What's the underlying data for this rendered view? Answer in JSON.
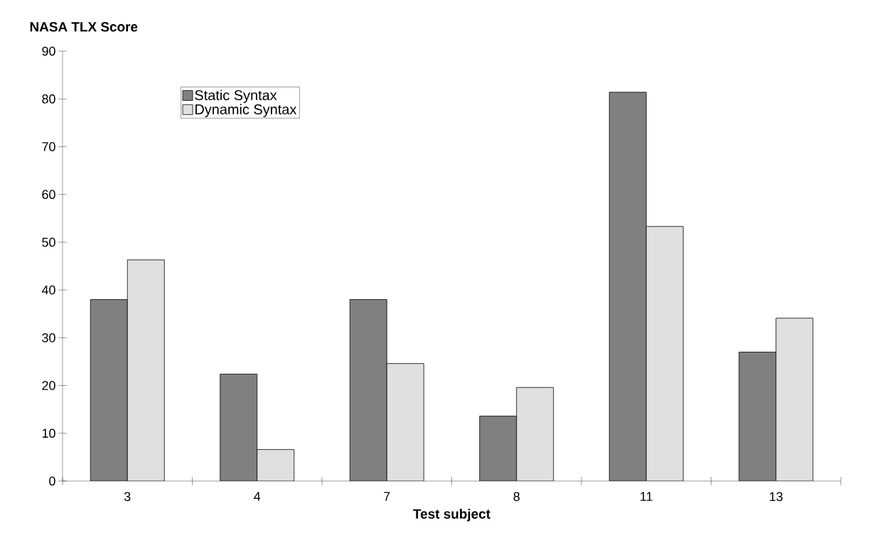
{
  "chart_data": {
    "type": "bar",
    "ylabel": "NASA TLX Score",
    "xlabel": "Test subject",
    "categories": [
      "3",
      "4",
      "7",
      "8",
      "11",
      "13"
    ],
    "series": [
      {
        "name": "Static Syntax",
        "color": "#808080",
        "values": [
          38.0,
          22.4,
          38.0,
          13.6,
          81.4,
          27.0
        ]
      },
      {
        "name": "Dynamic Syntax",
        "color": "#e0e0e0",
        "values": [
          46.3,
          6.6,
          24.6,
          19.6,
          53.3,
          34.1
        ]
      }
    ],
    "ylim": [
      0,
      90
    ],
    "yticks": [
      0,
      10,
      20,
      30,
      40,
      50,
      60,
      70,
      80,
      90
    ],
    "grid": false,
    "legend": "top left"
  }
}
